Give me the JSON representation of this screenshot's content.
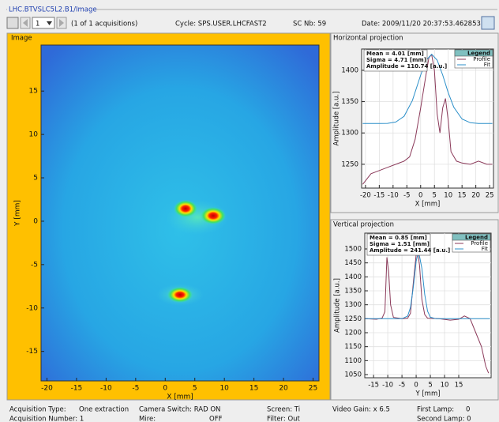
{
  "header": {
    "title": "LHC.BTVSLC5L2.B1/Image"
  },
  "toolbar": {
    "page": "1",
    "acquisitions": "(1 of 1 acquisitions)",
    "cycle": "Cycle: SPS.USER.LHCFAST2",
    "sc_nb": "SC Nb: 59",
    "date": "Date: 2009/11/20 20:37:53.462853"
  },
  "status": {
    "acquisition_type_label": "Acquisition Type:",
    "acquisition_type": "One extraction",
    "acquisition_number": "Acquisition Number: 1",
    "camera_switch": "Camera Switch: RAD ON",
    "mire_label": "Mire:",
    "mire": "OFF",
    "screen": "Screen: Ti",
    "filter": "Filter: Out",
    "video_gain": "Video Gain: x 6.5",
    "first_lamp_label": "First Lamp:",
    "first_lamp": "0",
    "second_lamp": "Second Lamp: 0"
  },
  "chart_data": [
    {
      "type": "heatmap",
      "title": "Image",
      "xlabel": "X [mm]",
      "ylabel": "Y [mm]",
      "xlim": [
        -21,
        26
      ],
      "ylim": [
        -18.4,
        20.3
      ],
      "xticks": [
        -20,
        -15,
        -10,
        -5,
        0,
        5,
        10,
        15,
        20,
        25
      ],
      "yticks": [
        -15,
        -10,
        -5,
        0,
        5,
        10,
        15
      ],
      "grid": false
    },
    {
      "type": "line",
      "title": "Horizontal projection",
      "xlabel": "X [mm]",
      "ylabel": "Amplitude [a.u.]",
      "xlim": [
        -21.4,
        26.4
      ],
      "ylim": [
        1212,
        1434
      ],
      "xticks": [
        -20,
        -15,
        -10,
        -5,
        0,
        5,
        10,
        15,
        20,
        25
      ],
      "yticks": [
        1250,
        1300,
        1350,
        1400
      ],
      "grid": true,
      "annotations": [
        "Mean = 4.01 [mm]",
        "Sigma = 4.71 [mm]",
        "Amplitude = 110.74 [a.u.]"
      ],
      "legend": {
        "title": "Legend",
        "position": "upper right"
      },
      "series": [
        {
          "name": "Profile",
          "color": "#8b3a5a",
          "x": [
            -21,
            -18,
            -15,
            -12,
            -9,
            -6,
            -4,
            -2,
            0,
            2,
            3,
            4,
            5,
            6,
            7,
            8,
            9,
            10,
            11,
            13,
            15,
            18,
            21,
            24,
            26
          ],
          "values": [
            1218,
            1235,
            1240,
            1245,
            1250,
            1255,
            1262,
            1290,
            1340,
            1395,
            1420,
            1425,
            1400,
            1330,
            1300,
            1340,
            1355,
            1320,
            1270,
            1255,
            1252,
            1250,
            1255,
            1250,
            1250
          ]
        },
        {
          "name": "Fit",
          "color": "#2b8fc9",
          "x": [
            -21,
            -18,
            -15,
            -12,
            -9,
            -6,
            -3,
            0,
            2,
            4,
            6,
            8,
            10,
            12,
            15,
            18,
            21,
            24,
            26
          ],
          "values": [
            1315,
            1315,
            1315,
            1315.3,
            1317.4,
            1326.6,
            1351.8,
            1392.4,
            1416.2,
            1425.7,
            1416.2,
            1392.4,
            1364.3,
            1341.2,
            1322.2,
            1316.3,
            1315,
            1315,
            1315
          ]
        }
      ]
    },
    {
      "type": "line",
      "title": "Vertical projection",
      "xlabel": "Y [mm]",
      "ylabel": "Amplitude [a.u.]",
      "xlim": [
        -18.1,
        26.4
      ],
      "ylim": [
        1038.7,
        1556.6
      ],
      "xticks": [
        -15,
        -10,
        -5,
        0,
        5,
        10,
        15
      ],
      "yticks": [
        1050,
        1100,
        1150,
        1200,
        1250,
        1300,
        1350,
        1400,
        1450,
        1500
      ],
      "grid": true,
      "annotations": [
        "Mean = 0.85 [mm]",
        "Sigma = 1.51 [mm]",
        "Amplitude = 241.44 [a.u.]"
      ],
      "legend": {
        "title": "Legend",
        "position": "upper right"
      },
      "series": [
        {
          "name": "Profile",
          "color": "#8b3a5a",
          "x": [
            -18,
            -14,
            -12,
            -11,
            -10.3,
            -9.7,
            -9,
            -8,
            -5,
            -3,
            -2,
            -1,
            0,
            0.5,
            1.2,
            2,
            3,
            4,
            8,
            12,
            15,
            17,
            19,
            21,
            23,
            24.5,
            25.5
          ],
          "values": [
            1250,
            1248,
            1252,
            1275,
            1470,
            1420,
            1300,
            1255,
            1250,
            1252,
            1270,
            1380,
            1480,
            1495,
            1440,
            1320,
            1265,
            1252,
            1250,
            1245,
            1248,
            1260,
            1250,
            1200,
            1150,
            1080,
            1055
          ]
        },
        {
          "name": "Fit",
          "color": "#2b8fc9",
          "x": [
            -18,
            -10,
            -5,
            -3,
            -2,
            -1,
            0,
            0.85,
            2,
            3,
            4,
            5,
            7,
            10,
            15,
            20,
            26
          ],
          "values": [
            1250,
            1250,
            1250,
            1259.4,
            1290.8,
            1364,
            1456.2,
            1491.4,
            1430.6,
            1337.6,
            1277.3,
            1255.5,
            1250,
            1250,
            1250,
            1250,
            1250
          ]
        }
      ]
    }
  ]
}
